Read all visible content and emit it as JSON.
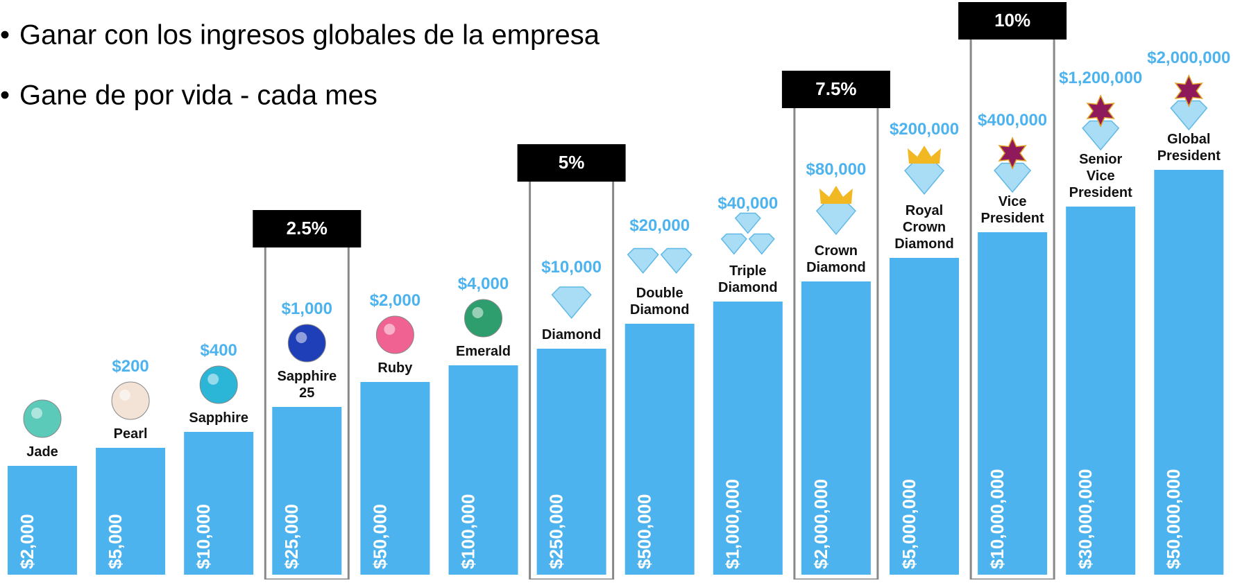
{
  "bullets": [
    "Ganar con los ingresos globales de la empresa",
    "Gane de por vida - cada mes"
  ],
  "ranks": [
    {
      "name": "Jade",
      "volume": "$2,000"
    },
    {
      "name": "Pearl",
      "bonus": "$200",
      "volume": "$5,000"
    },
    {
      "name": "Sapphire",
      "bonus": "$400",
      "volume": "$10,000"
    },
    {
      "name": "Sapphire\n25",
      "bonus": "$1,000",
      "volume": "$25,000",
      "tier": "2.5%"
    },
    {
      "name": "Ruby",
      "bonus": "$2,000",
      "volume": "$50,000"
    },
    {
      "name": "Emerald",
      "bonus": "$4,000",
      "volume": "$100,000"
    },
    {
      "name": "Diamond",
      "bonus": "$10,000",
      "volume": "$250,000",
      "tier": "5%"
    },
    {
      "name": "Double\nDiamond",
      "bonus": "$20,000",
      "volume": "$500,000"
    },
    {
      "name": "Triple\nDiamond",
      "bonus": "$40,000",
      "volume": "$1,000,000"
    },
    {
      "name": "Crown\nDiamond",
      "bonus": "$80,000",
      "volume": "$2,000,000",
      "tier": "7.5%"
    },
    {
      "name": "Royal\nCrown\nDiamond",
      "bonus": "$200,000",
      "volume": "$5,000,000"
    },
    {
      "name": "Vice\nPresident",
      "bonus": "$400,000",
      "volume": "$10,000,000",
      "tier": "10%"
    },
    {
      "name": "Senior\nVice\nPresident",
      "bonus": "$1,200,000",
      "volume": "$30,000,000"
    },
    {
      "name": "Global\nPresident",
      "bonus": "$2,000,000",
      "volume": "$50,000,000"
    }
  ]
}
